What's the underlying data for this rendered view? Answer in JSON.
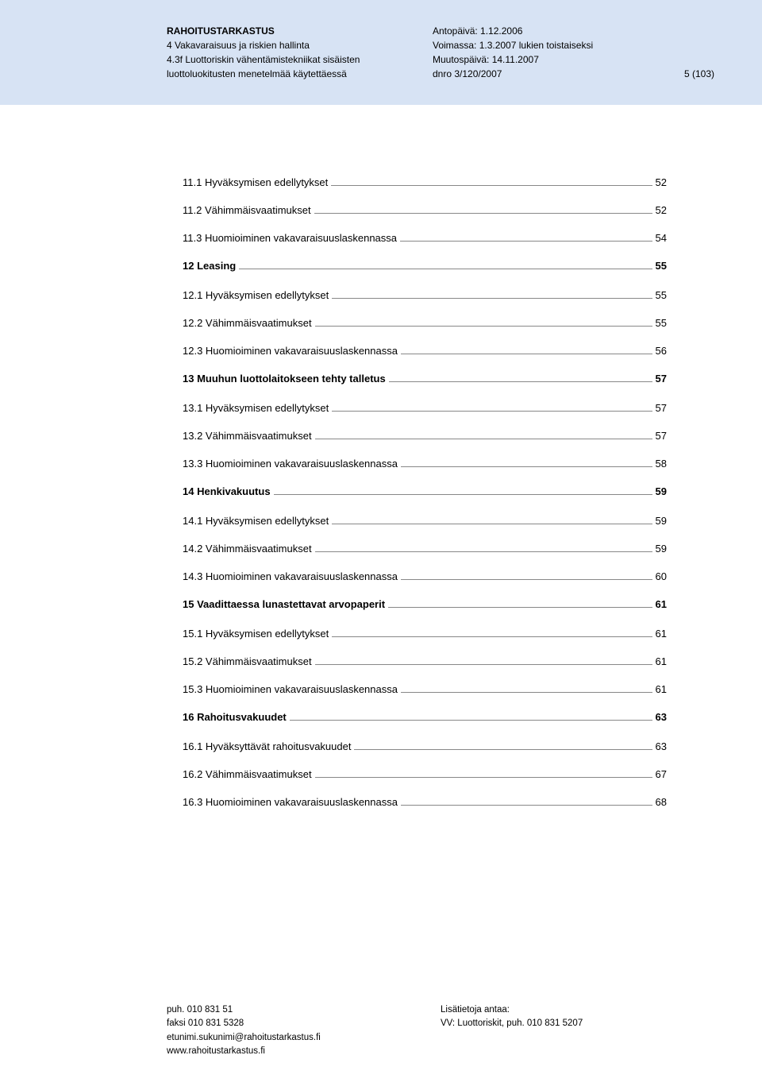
{
  "header": {
    "left": {
      "line1": "RAHOITUSTARKASTUS",
      "line2": "4 Vakavaraisuus ja riskien hallinta",
      "line3": "4.3f Luottoriskin vähentämistekniikat sisäisten luottoluokitusten menetelmää käytettäessä"
    },
    "right": {
      "line1": "Antopäivä: 1.12.2006",
      "line2": "Voimassa: 1.3.2007 lukien toistaiseksi",
      "line3": "Muutospäivä: 14.11.2007",
      "line4": "dnro 3/120/2007"
    },
    "page_num": "5 (103)"
  },
  "toc": [
    {
      "label": "11.1 Hyväksymisen edellytykset",
      "page": "52",
      "bold": false
    },
    {
      "label": "11.2 Vähimmäisvaatimukset",
      "page": "52",
      "bold": false
    },
    {
      "label": "11.3 Huomioiminen vakavaraisuuslaskennassa",
      "page": "54",
      "bold": false
    },
    {
      "label": "12 Leasing",
      "page": "55",
      "bold": true
    },
    {
      "label": "12.1 Hyväksymisen edellytykset",
      "page": "55",
      "bold": false
    },
    {
      "label": "12.2 Vähimmäisvaatimukset",
      "page": "55",
      "bold": false
    },
    {
      "label": "12.3 Huomioiminen vakavaraisuuslaskennassa",
      "page": "56",
      "bold": false
    },
    {
      "label": "13 Muuhun luottolaitokseen tehty talletus",
      "page": "57",
      "bold": true
    },
    {
      "label": "13.1 Hyväksymisen edellytykset",
      "page": "57",
      "bold": false
    },
    {
      "label": "13.2 Vähimmäisvaatimukset",
      "page": "57",
      "bold": false
    },
    {
      "label": "13.3 Huomioiminen vakavaraisuuslaskennassa",
      "page": "58",
      "bold": false
    },
    {
      "label": "14 Henkivakuutus",
      "page": "59",
      "bold": true
    },
    {
      "label": "14.1 Hyväksymisen edellytykset",
      "page": "59",
      "bold": false
    },
    {
      "label": "14.2 Vähimmäisvaatimukset",
      "page": "59",
      "bold": false
    },
    {
      "label": "14.3 Huomioiminen vakavaraisuuslaskennassa",
      "page": "60",
      "bold": false
    },
    {
      "label": "15 Vaadittaessa lunastettavat arvopaperit",
      "page": "61",
      "bold": true
    },
    {
      "label": "15.1 Hyväksymisen edellytykset",
      "page": "61",
      "bold": false
    },
    {
      "label": "15.2 Vähimmäisvaatimukset",
      "page": "61",
      "bold": false
    },
    {
      "label": "15.3 Huomioiminen vakavaraisuuslaskennassa",
      "page": "61",
      "bold": false
    },
    {
      "label": "16 Rahoitusvakuudet",
      "page": "63",
      "bold": true
    },
    {
      "label": "16.1 Hyväksyttävät rahoitusvakuudet",
      "page": "63",
      "bold": false
    },
    {
      "label": "16.2 Vähimmäisvaatimukset",
      "page": "67",
      "bold": false
    },
    {
      "label": "16.3 Huomioiminen vakavaraisuuslaskennassa",
      "page": "68",
      "bold": false
    }
  ],
  "footer": {
    "left": {
      "line1": "puh. 010 831 51",
      "line2": "faksi 010 831 5328",
      "line3": "etunimi.sukunimi@rahoitustarkastus.fi",
      "line4": "www.rahoitustarkastus.fi"
    },
    "right": {
      "line1": "Lisätietoja antaa:",
      "line2": "VV: Luottoriskit, puh. 010 831 5207"
    }
  },
  "colors": {
    "header_bg": "#d7e3f4",
    "text": "#000000",
    "dots": "#888888",
    "page_bg": "#ffffff"
  },
  "fonts": {
    "body_family": "Verdana, Geneva, sans-serif",
    "header_size_pt": 9,
    "toc_size_pt": 10,
    "footer_size_pt": 9
  }
}
